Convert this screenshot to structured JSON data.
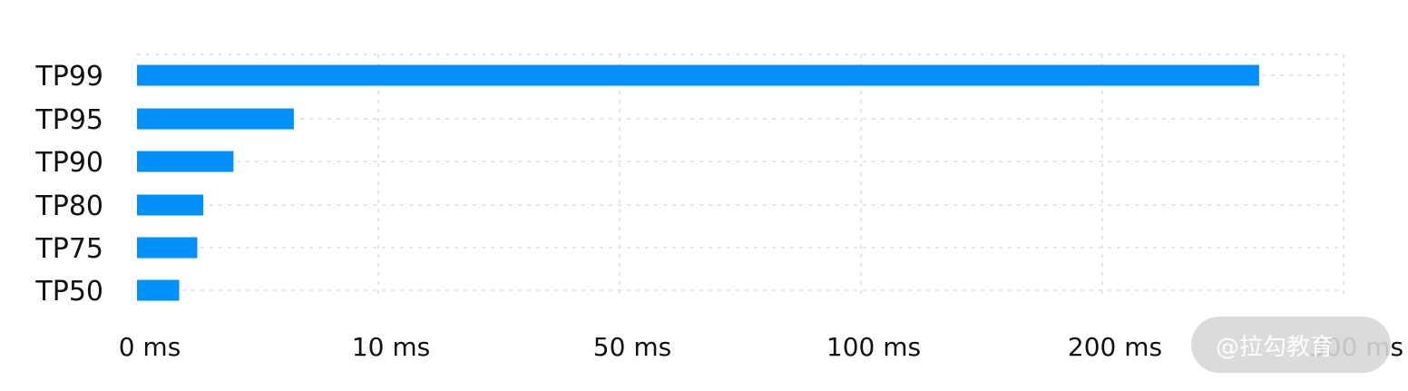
{
  "chart_data": {
    "type": "bar",
    "orientation": "horizontal",
    "categories": [
      "TP99",
      "TP95",
      "TP90",
      "TP80",
      "TP75",
      "TP50"
    ],
    "values": [
      265,
      6.5,
      4.0,
      2.75,
      2.5,
      1.75
    ],
    "x_ticks": [
      "0 ms",
      "10 ms",
      "50 ms",
      "100 ms",
      "200 ms",
      "300 ms"
    ],
    "x_tick_values": [
      0,
      10,
      50,
      100,
      200,
      300
    ],
    "title": "",
    "xlabel": "",
    "ylabel": "",
    "grid": true,
    "bar_color": "#0091ff",
    "grid_color": "#e6e6e6"
  },
  "watermark": {
    "text": "@拉勾教育"
  }
}
